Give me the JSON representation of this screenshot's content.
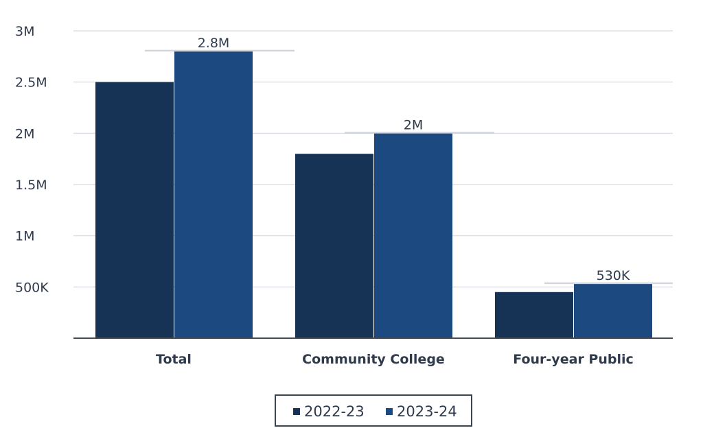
{
  "chart_data": {
    "type": "bar",
    "title": "",
    "xlabel": "",
    "ylabel": "",
    "categories": [
      "Total",
      "Community College",
      "Four-year Public"
    ],
    "series": [
      {
        "name": "2022-23",
        "values": [
          2500000,
          1800000,
          450000
        ],
        "color": "#163356"
      },
      {
        "name": "2023-24",
        "values": [
          2800000,
          2000000,
          530000
        ],
        "color": "#1c4a80"
      }
    ],
    "data_labels": [
      "2.8M",
      "2M",
      "530K"
    ],
    "ylim": [
      0,
      3000000
    ],
    "yticks": [
      500000,
      1000000,
      1500000,
      2000000,
      2500000,
      3000000
    ],
    "ytick_labels": [
      "500K",
      "1M",
      "1.5M",
      "2M",
      "2.5M",
      "3M"
    ],
    "grid": true,
    "legend_position": "bottom-center"
  }
}
